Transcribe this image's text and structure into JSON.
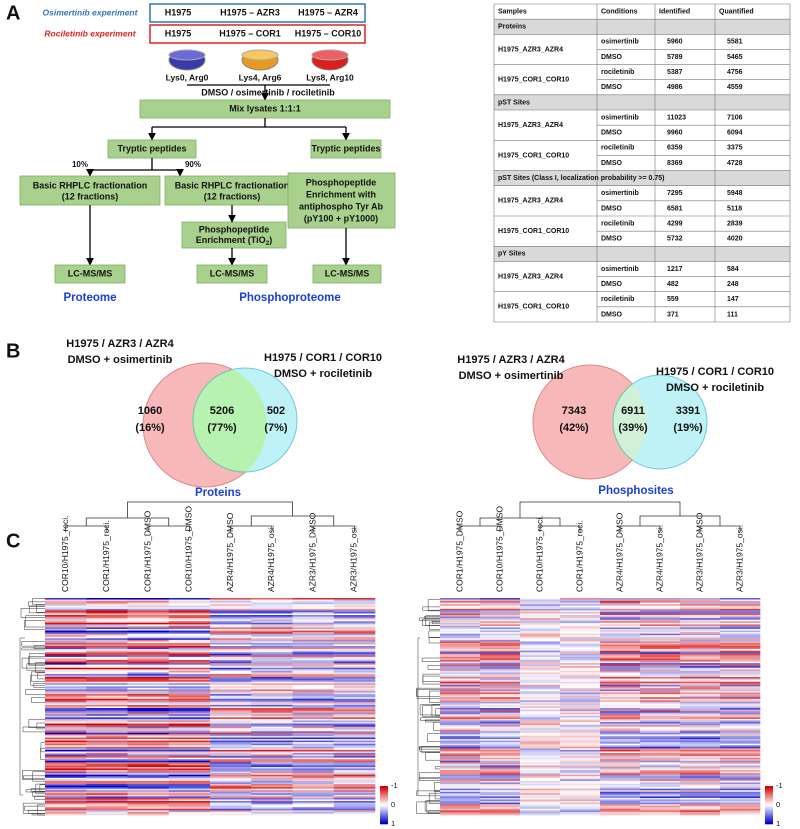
{
  "panel_a": {
    "label": "A",
    "osimertinib_experiment": {
      "label": "Osimertinib experiment",
      "cells": [
        "H1975",
        "H1975 – AZR3",
        "H1975 – AZR4"
      ]
    },
    "rociletinib_experiment": {
      "label": "Rociletinib experiment",
      "cells": [
        "H1975",
        "H1975 – COR1",
        "H1975 – COR10"
      ]
    },
    "dishes": [
      "Lys0, Arg0",
      "Lys4, Arg6",
      "Lys8, Arg10"
    ],
    "treatment": "DMSO / osimertinib / rociletinib",
    "mix": "Mix lysates 1:1:1",
    "tryptic": [
      "Tryptic peptides",
      "Tryptic peptides"
    ],
    "split": [
      "10%",
      "90%"
    ],
    "fractionation": [
      [
        "Basic RHPLC fractionation",
        "(12 fractions)"
      ],
      [
        "Basic RHPLC fractionation",
        "(12 fractions)"
      ]
    ],
    "tio2": {
      "line1": "Phosphopeptide",
      "line2": "Enrichment (TiO",
      "sub": "2",
      "end": ")"
    },
    "tyr": [
      "Phosphopeptide",
      "Enrichment with",
      "antiphospho  Tyr Ab",
      "(pY100 + pY1000)"
    ],
    "lcms": [
      "LC-MS/MS",
      "LC-MS/MS",
      "LC-MS/MS"
    ],
    "outputs": [
      "Proteome",
      "Phosphoproteome"
    ]
  },
  "table": {
    "header": [
      "Samples",
      "Conditions",
      "Identified",
      "Quantified"
    ],
    "sections": [
      {
        "title": "Proteins",
        "groups": [
          {
            "sample": "H1975_AZR3_AZR4",
            "rows": [
              [
                "osimertinib",
                5960,
                5581
              ],
              [
                "DMSO",
                5789,
                5465
              ]
            ]
          },
          {
            "sample": "H1975_COR1_COR10",
            "rows": [
              [
                "rociletinib",
                5387,
                4756
              ],
              [
                "DMSO",
                4986,
                4559
              ]
            ]
          }
        ]
      },
      {
        "title": "pST Sites",
        "groups": [
          {
            "sample": "H1975_AZR3_AZR4",
            "rows": [
              [
                "osimertinib",
                11023,
                7106
              ],
              [
                "DMSO",
                9960,
                6094
              ]
            ]
          },
          {
            "sample": "H1975_COR1_COR10",
            "rows": [
              [
                "rociletinib",
                6359,
                3375
              ],
              [
                "DMSO",
                8369,
                4728
              ]
            ]
          }
        ]
      },
      {
        "title": "pST Sites (Class I, localization probability >= 0.75)",
        "groups": [
          {
            "sample": "H1975_AZR3_AZR4",
            "rows": [
              [
                "osimertinib",
                7295,
                5948
              ],
              [
                "DMSO",
                6581,
                5118
              ]
            ]
          },
          {
            "sample": "H1975_COR1_COR10",
            "rows": [
              [
                "rociletinib",
                4299,
                2839
              ],
              [
                "DMSO",
                5732,
                4020
              ]
            ]
          }
        ]
      },
      {
        "title": "pY Sites",
        "groups": [
          {
            "sample": "H1975_AZR3_AZR4",
            "rows": [
              [
                "osimertinib",
                1217,
                584
              ],
              [
                "DMSO",
                482,
                248
              ]
            ]
          },
          {
            "sample": "H1975_COR1_COR10",
            "rows": [
              [
                "rociletinib",
                559,
                147
              ],
              [
                "DMSO",
                371,
                111
              ]
            ]
          }
        ]
      }
    ]
  },
  "panel_b": {
    "label": "B",
    "venns": [
      {
        "left_title": [
          "H1975 / AZR3 / AZR4",
          "DMSO + osimertinib"
        ],
        "right_title": [
          "H1975 / COR1 / COR10",
          "DMSO + rociletinib"
        ],
        "regions": [
          {
            "count": 1060,
            "percent": "(16%)"
          },
          {
            "count": 5206,
            "percent": "(77%)"
          },
          {
            "count": 502,
            "percent": "(7%)"
          }
        ],
        "label": "Proteins"
      },
      {
        "left_title": [
          "H1975 / AZR3 / AZR4",
          "DMSO + osimertinib"
        ],
        "right_title": [
          "H1975 / COR1 / COR10",
          "DMSO + rociletinib"
        ],
        "regions": [
          {
            "count": 7343,
            "percent": "(42%)"
          },
          {
            "count": 6911,
            "percent": "(39%)"
          },
          {
            "count": 3391,
            "percent": "(19%)"
          }
        ],
        "label": "Phosphosites"
      }
    ]
  },
  "panel_c": {
    "label": "C",
    "heatmaps": [
      {
        "columns": [
          "COR10/H1975_roci.",
          "COR1/H1975_roci.",
          "COR1/H1975_DMSO",
          "COR10/H1975_DMSO",
          "AZR4/H1975_DMSO",
          "AZR4/H1975_osi.",
          "AZR3/H1975_DMSO",
          "AZR3/H1975_osi."
        ],
        "colorbar": [
          -1,
          0,
          1
        ]
      },
      {
        "columns": [
          "COR1/H1975_DMSO",
          "COR10/H1975_DMSO",
          "COR10/H1975_roci.",
          "COR1/H1975_roci.",
          "AZR4/H1975_DMSO",
          "AZR4/H1975_osi.",
          "AZR3/H1975_DMSO",
          "AZR3/H1975_osi."
        ],
        "colorbar": [
          -1,
          0,
          1
        ]
      }
    ]
  }
}
